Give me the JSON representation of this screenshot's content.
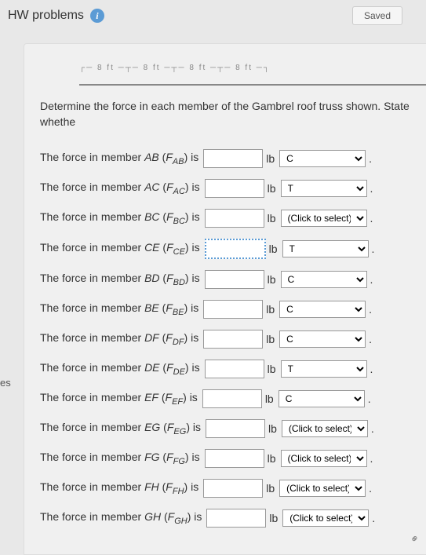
{
  "header": {
    "title": "HW problems",
    "saved": "Saved"
  },
  "instruction": "Determine the force in each member of the Gambrel roof truss shown. State whethe",
  "unit": "lb",
  "side_label": "es",
  "diagram_text": "┌─ 8 ft ─┬─ 8 ft ─┬─ 8 ft ─┬─ 8 ft ─┐",
  "selects": {
    "c": "C",
    "t": "T",
    "click": "(Click to select)"
  },
  "rows": [
    {
      "member": "AB",
      "sym": "F",
      "sub": "AB",
      "sel": "c",
      "dotted": false
    },
    {
      "member": "AC",
      "sym": "F",
      "sub": "AC",
      "sel": "t",
      "dotted": false
    },
    {
      "member": "BC",
      "sym": "F",
      "sub": "BC",
      "sel": "click",
      "dotted": false
    },
    {
      "member": "CE",
      "sym": "F",
      "sub": "CE",
      "sel": "t",
      "dotted": true
    },
    {
      "member": "BD",
      "sym": "F",
      "sub": "BD",
      "sel": "c",
      "dotted": false
    },
    {
      "member": "BE",
      "sym": "F",
      "sub": "BE",
      "sel": "c",
      "dotted": false
    },
    {
      "member": "DF",
      "sym": "F",
      "sub": "DF",
      "sel": "c",
      "dotted": false
    },
    {
      "member": "DE",
      "sym": "F",
      "sub": "DE",
      "sel": "t",
      "dotted": false
    },
    {
      "member": "EF",
      "sym": "F",
      "sub": "EF",
      "sel": "c",
      "dotted": false
    },
    {
      "member": "EG",
      "sym": "F",
      "sub": "EG",
      "sel": "click",
      "dotted": false
    },
    {
      "member": "FG",
      "sym": "F",
      "sub": "FG",
      "sel": "click",
      "dotted": false
    },
    {
      "member": "FH",
      "sym": "F",
      "sub": "FH",
      "sel": "click",
      "dotted": false
    },
    {
      "member": "GH",
      "sym": "F",
      "sub": "GH",
      "sel": "click",
      "dotted": false
    }
  ]
}
